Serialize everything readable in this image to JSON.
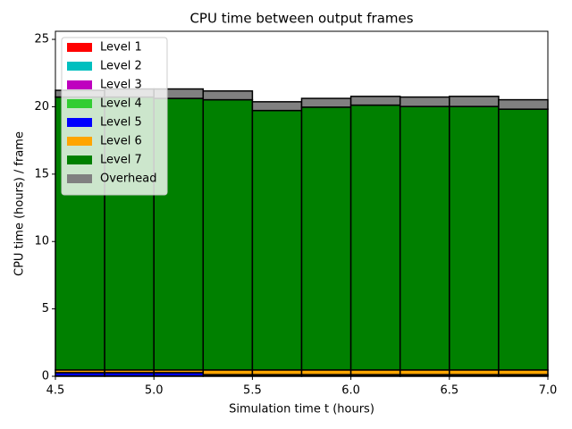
{
  "chart_data": {
    "type": "histogram",
    "title": "CPU time between output frames",
    "xlabel": "Simulation time t (hours)",
    "ylabel": "CPU time (hours) / frame",
    "bins": [
      4.5,
      4.75,
      5.0,
      5.25,
      5.5,
      5.75,
      6.0,
      6.25,
      6.5,
      6.75,
      7.0
    ],
    "stacked": true,
    "series": [
      {
        "name": "Level 1",
        "color": "#ff0000",
        "values": [
          0,
          0,
          0,
          0,
          0,
          0,
          0,
          0,
          0,
          0
        ]
      },
      {
        "name": "Level 2",
        "color": "#00bfbf",
        "values": [
          0,
          0,
          0,
          0,
          0,
          0,
          0,
          0,
          0,
          0
        ]
      },
      {
        "name": "Level 3",
        "color": "#bf00bf",
        "values": [
          0,
          0,
          0,
          0,
          0,
          0,
          0,
          0,
          0,
          0
        ]
      },
      {
        "name": "Level 4",
        "color": "#32cd32",
        "values": [
          0.02,
          0.02,
          0.02,
          0.02,
          0.02,
          0.02,
          0.02,
          0.02,
          0.02,
          0.02
        ]
      },
      {
        "name": "Level 5",
        "color": "#0000ff",
        "values": [
          0.25,
          0.25,
          0.25,
          0.1,
          0.1,
          0.1,
          0.1,
          0.1,
          0.1,
          0.1
        ]
      },
      {
        "name": "Level 6",
        "color": "#ffa500",
        "values": [
          0.2,
          0.2,
          0.2,
          0.35,
          0.35,
          0.35,
          0.35,
          0.35,
          0.35,
          0.35
        ]
      },
      {
        "name": "Level 7",
        "color": "#008000",
        "values": [
          20.25,
          20.25,
          20.15,
          20.05,
          19.25,
          19.5,
          19.65,
          19.55,
          19.55,
          19.35
        ]
      },
      {
        "name": "Overhead",
        "color": "#808080",
        "values": [
          0.5,
          0.6,
          0.7,
          0.65,
          0.65,
          0.65,
          0.65,
          0.7,
          0.75,
          0.7
        ]
      }
    ],
    "xlim": [
      4.5,
      7.0
    ],
    "ylim": [
      0,
      25.6
    ],
    "xticks": [
      4.5,
      {
        "value": 5,
        "label": "5.0"
      },
      5.5,
      {
        "value": 6,
        "label": "6.0"
      },
      6.5,
      {
        "value": 7,
        "label": "7.0"
      }
    ],
    "yticks": [
      0,
      5,
      10,
      15,
      20,
      25
    ],
    "legend": "upper left"
  }
}
